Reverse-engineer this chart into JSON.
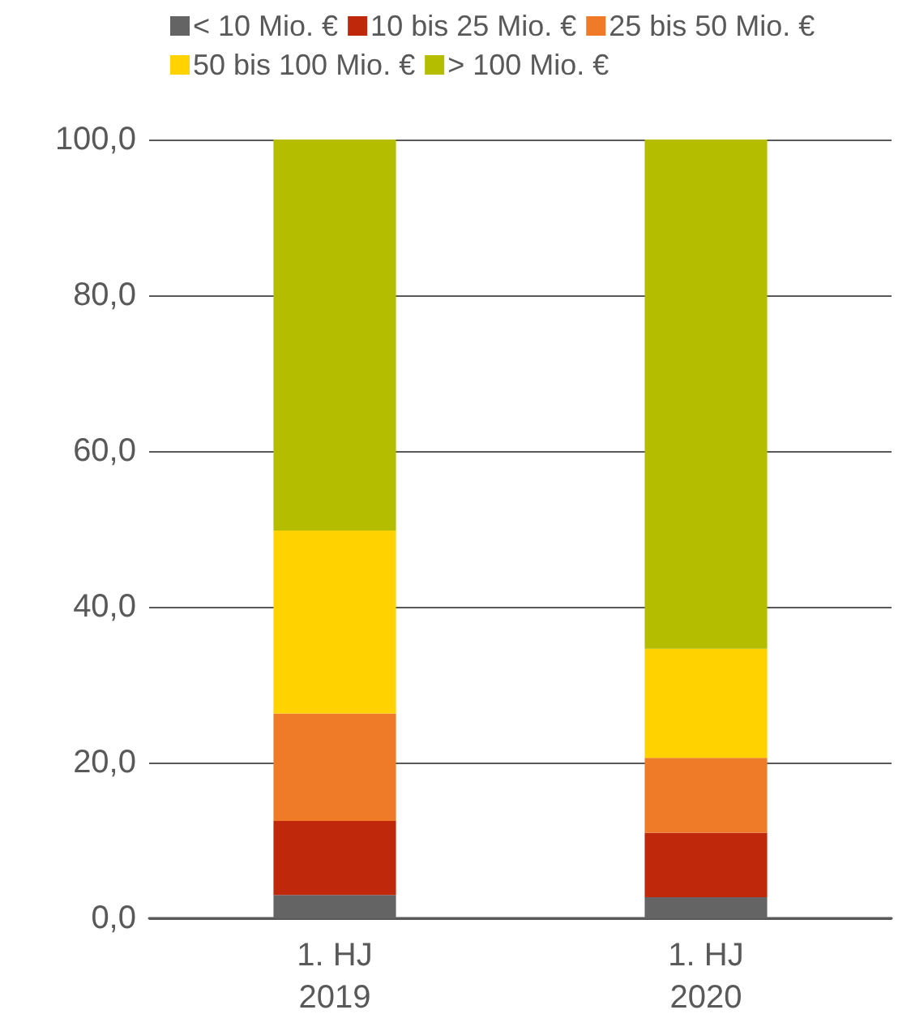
{
  "chart_data": {
    "type": "bar",
    "stacked": true,
    "categories": [
      "1. HJ\n2019",
      "1. HJ\n2020"
    ],
    "series": [
      {
        "name": "< 10 Mio. €",
        "color": "#646464",
        "values": [
          3.0,
          2.7
        ]
      },
      {
        "name": "10 bis 25 Mio. €",
        "color": "#c0280c",
        "values": [
          9.5,
          8.3
        ]
      },
      {
        "name": "25 bis 50 Mio. €",
        "color": "#ef7b28",
        "values": [
          13.8,
          9.6
        ]
      },
      {
        "name": "50 bis 100 Mio. €",
        "color": "#ffd200",
        "values": [
          23.5,
          14.0
        ]
      },
      {
        "name": "> 100 Mio. €",
        "color": "#b5bd00",
        "values": [
          50.2,
          65.4
        ]
      }
    ],
    "ylim": [
      0,
      100
    ],
    "yticks": [
      {
        "value": 0,
        "label": "0,0"
      },
      {
        "value": 20,
        "label": "20,0"
      },
      {
        "value": 40,
        "label": "40,0"
      },
      {
        "value": 60,
        "label": "60,0"
      },
      {
        "value": 80,
        "label": "80,0"
      },
      {
        "value": 100,
        "label": "100,0"
      }
    ],
    "grid": "y",
    "legend": "top"
  }
}
